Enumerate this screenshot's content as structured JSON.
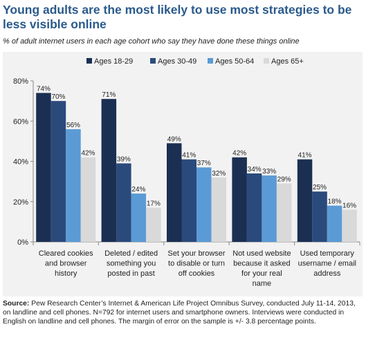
{
  "title": "Young adults are the most likely to use most strategies to be less visible online",
  "subtitle": "% of adult internet users in each age cohort who say they have done these things online",
  "source_label": "Source:",
  "source_text": "Pew Research Center’s Internet & American Life Project Omnibus Survey, conducted July 11-14, 2013, on landline and cell phones. N=792 for internet users and smartphone owners. Interviews were conducted in English on landline and cell phones. The margin of error on the sample is +/- 3.8 percentage points.",
  "chart_data": {
    "type": "bar",
    "categories": [
      [
        "Cleared cookies",
        "and browser",
        "history"
      ],
      [
        "Deleted / edited",
        "something you",
        "posted in past"
      ],
      [
        "Set your browser",
        "to disable or turn",
        "off cookies"
      ],
      [
        "Not used website",
        "because it asked",
        "for your real",
        "name"
      ],
      [
        "Used temporary",
        "username / email",
        "address"
      ]
    ],
    "series": [
      {
        "name": "Ages 18-29",
        "color": "#1b2f52",
        "values": [
          74,
          71,
          49,
          42,
          41
        ],
        "labels": [
          "74%",
          "71%",
          "49%",
          "42%",
          "41%"
        ]
      },
      {
        "name": "Ages 30-49",
        "color": "#2b4a7c",
        "values": [
          70,
          39,
          41,
          34,
          25
        ],
        "labels": [
          "70%",
          "39%",
          "41%",
          "34%",
          "25%"
        ]
      },
      {
        "name": "Ages 50-64",
        "color": "#5b9bd5",
        "values": [
          56,
          24,
          37,
          33,
          18
        ],
        "labels": [
          "56%",
          "24%",
          "37%",
          "33%",
          "18%"
        ]
      },
      {
        "name": "Ages 65+",
        "color": "#d9d9d9",
        "values": [
          42,
          17,
          32,
          29,
          16
        ],
        "labels": [
          "42%",
          "17%",
          "32%",
          "29%",
          "16%"
        ]
      }
    ],
    "y_ticks": [
      "0%",
      "20%",
      "40%",
      "60%",
      "80%"
    ],
    "ylim": [
      0,
      80
    ],
    "legend_position": "top-right",
    "grid": false
  }
}
